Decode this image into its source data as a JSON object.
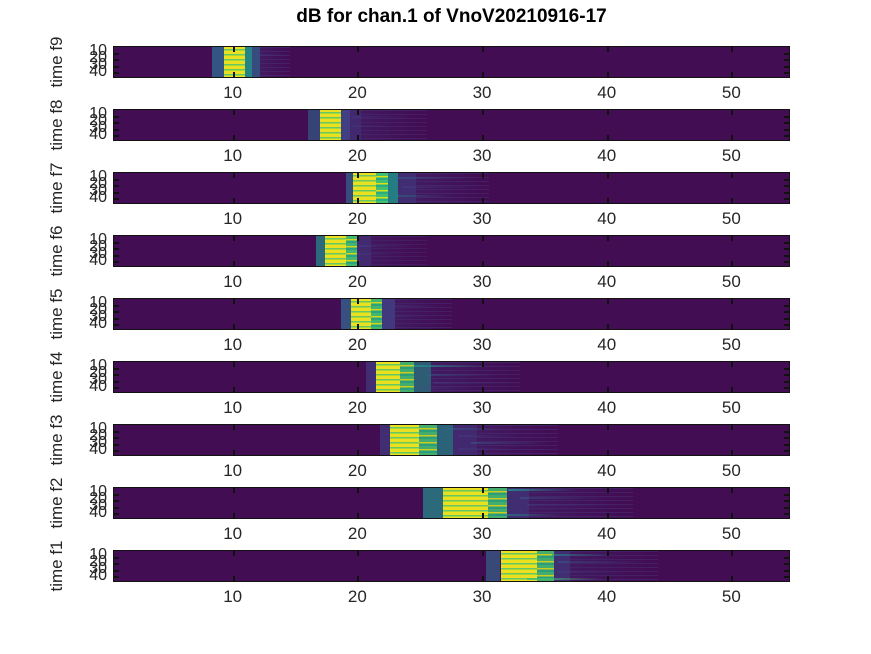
{
  "title": "dB for chan.1 of VnoV20210916-17",
  "colors": {
    "figure_background": "#ffffff",
    "heatmap_low": "#430d54",
    "heatmap_peak_yellow": "#ecdf1f",
    "heatmap_green": "#44bf70",
    "heatmap_teal": "#21918c",
    "heatmap_steel": "#31688e",
    "heatmap_blue": "#414487",
    "axis_text": "#262626",
    "axis_line": "#121212"
  },
  "chart_data": {
    "type": "heatmap",
    "title": "dB for chan.1 of VnoV20210916-17",
    "colormap": "viridis",
    "n_subplots": 9,
    "x_ticks": [
      10,
      20,
      30,
      40,
      50
    ],
    "xlim": [
      0.4,
      54.7
    ],
    "y_ticks": [
      10,
      20,
      30,
      40
    ],
    "ylim": [
      0,
      45
    ],
    "legend": "none",
    "grid": false,
    "subplots": [
      {
        "ylabel": "time f9",
        "x_tick_labels": [
          "10",
          "20",
          "30",
          "40",
          "50"
        ],
        "y_tick_labels": [
          "10",
          "20",
          "30",
          "40"
        ],
        "blob_center_x": 10,
        "blob_extent_x": [
          8.3,
          14.5
        ],
        "bands": [
          {
            "type": "steel",
            "x0": 8.3,
            "x1": 9.2,
            "opacity": 0.8
          },
          {
            "type": "stripe_yg",
            "x0": 9.2,
            "x1": 10.9,
            "opacity": 1
          },
          {
            "type": "teal",
            "x0": 10.9,
            "x1": 11.5,
            "opacity": 0.9
          },
          {
            "type": "steel",
            "x0": 11.5,
            "x1": 12.1,
            "opacity": 0.7
          },
          {
            "type": "tail",
            "x0": 12.1,
            "x1": 14.5,
            "opacity": 0.5
          }
        ],
        "streaks": [
          {
            "yfrac": 0.25,
            "x0": 11.5,
            "x1": 14.8,
            "color": "blue",
            "opacity": 0.35
          }
        ]
      },
      {
        "ylabel": "time f8",
        "x_tick_labels": [
          "10",
          "20",
          "30",
          "40",
          "50"
        ],
        "y_tick_labels": [
          "10",
          "20",
          "30",
          "40"
        ],
        "blob_center_x": 17.8,
        "blob_extent_x": [
          16.0,
          25.5
        ],
        "bands": [
          {
            "type": "steel",
            "x0": 16.0,
            "x1": 16.9,
            "opacity": 0.6
          },
          {
            "type": "stripe_yg",
            "x0": 16.9,
            "x1": 18.6,
            "opacity": 1
          },
          {
            "type": "blue",
            "x0": 18.6,
            "x1": 19.3,
            "opacity": 0.9
          },
          {
            "type": "blue",
            "x0": 19.3,
            "x1": 20.2,
            "opacity": 0.5
          },
          {
            "type": "tail",
            "x0": 20.2,
            "x1": 25.5,
            "opacity": 0.45
          }
        ],
        "streaks": [
          {
            "yfrac": 0.2,
            "x0": 19.5,
            "x1": 24.5,
            "color": "blue",
            "opacity": 0.3
          },
          {
            "yfrac": 0.5,
            "x0": 19.5,
            "x1": 22.5,
            "color": "blue",
            "opacity": 0.3
          }
        ]
      },
      {
        "ylabel": "time f7",
        "x_tick_labels": [
          "10",
          "20",
          "30",
          "40",
          "50"
        ],
        "y_tick_labels": [
          "10",
          "20",
          "30",
          "40"
        ],
        "blob_center_x": 20.5,
        "blob_extent_x": [
          19.0,
          30.5
        ],
        "bands": [
          {
            "type": "steel",
            "x0": 19.0,
            "x1": 19.6,
            "opacity": 0.7
          },
          {
            "type": "stripe_yg",
            "x0": 19.6,
            "x1": 21.4,
            "opacity": 1
          },
          {
            "type": "stripe_gy",
            "x0": 21.4,
            "x1": 22.4,
            "opacity": 1
          },
          {
            "type": "teal",
            "x0": 22.4,
            "x1": 23.2,
            "opacity": 0.85
          },
          {
            "type": "blue",
            "x0": 23.2,
            "x1": 24.6,
            "opacity": 0.6
          },
          {
            "type": "tail",
            "x0": 24.6,
            "x1": 30.5,
            "opacity": 0.5
          }
        ],
        "streaks": [
          {
            "yfrac": 0.15,
            "x0": 23.0,
            "x1": 29.0,
            "color": "steel",
            "opacity": 0.45
          },
          {
            "yfrac": 0.45,
            "x0": 23.5,
            "x1": 31.0,
            "color": "blue",
            "opacity": 0.35
          },
          {
            "yfrac": 0.75,
            "x0": 23.0,
            "x1": 27.5,
            "color": "teal",
            "opacity": 0.3
          }
        ]
      },
      {
        "ylabel": "time f6",
        "x_tick_labels": [
          "10",
          "20",
          "30",
          "40",
          "50"
        ],
        "y_tick_labels": [
          "10",
          "20",
          "30",
          "40"
        ],
        "blob_center_x": 18.2,
        "blob_extent_x": [
          16.6,
          25.5
        ],
        "bands": [
          {
            "type": "teal",
            "x0": 16.6,
            "x1": 17.3,
            "opacity": 0.7
          },
          {
            "type": "stripe_yg",
            "x0": 17.3,
            "x1": 19.0,
            "opacity": 1
          },
          {
            "type": "stripe_gy",
            "x0": 19.0,
            "x1": 19.9,
            "opacity": 0.95
          },
          {
            "type": "blue",
            "x0": 19.9,
            "x1": 21.0,
            "opacity": 0.55
          },
          {
            "type": "tail",
            "x0": 21.0,
            "x1": 25.5,
            "opacity": 0.4
          }
        ],
        "streaks": [
          {
            "yfrac": 0.3,
            "x0": 20.0,
            "x1": 24.5,
            "color": "blue",
            "opacity": 0.35
          },
          {
            "yfrac": 0.6,
            "x0": 20.0,
            "x1": 23.0,
            "color": "blue",
            "opacity": 0.3
          }
        ]
      },
      {
        "ylabel": "time f5",
        "x_tick_labels": [
          "10",
          "20",
          "30",
          "40",
          "50"
        ],
        "y_tick_labels": [
          "10",
          "20",
          "30",
          "40"
        ],
        "blob_center_x": 20.3,
        "blob_extent_x": [
          18.6,
          27.5
        ],
        "bands": [
          {
            "type": "steel",
            "x0": 18.6,
            "x1": 19.4,
            "opacity": 0.75
          },
          {
            "type": "stripe_yg",
            "x0": 19.4,
            "x1": 21.0,
            "opacity": 1
          },
          {
            "type": "stripe_gy",
            "x0": 21.0,
            "x1": 21.9,
            "opacity": 0.95
          },
          {
            "type": "blue",
            "x0": 21.9,
            "x1": 22.9,
            "opacity": 0.8
          },
          {
            "type": "tail",
            "x0": 22.9,
            "x1": 27.5,
            "opacity": 0.45
          }
        ],
        "streaks": [
          {
            "yfrac": 0.2,
            "x0": 22.5,
            "x1": 27.0,
            "color": "blue",
            "opacity": 0.35
          },
          {
            "yfrac": 0.55,
            "x0": 22.5,
            "x1": 25.5,
            "color": "blue",
            "opacity": 0.3
          }
        ]
      },
      {
        "ylabel": "time f4",
        "x_tick_labels": [
          "10",
          "20",
          "30",
          "40",
          "50"
        ],
        "y_tick_labels": [
          "10",
          "20",
          "30",
          "40"
        ],
        "blob_center_x": 22.5,
        "blob_extent_x": [
          20.6,
          33.0
        ],
        "bands": [
          {
            "type": "blue",
            "x0": 20.6,
            "x1": 21.4,
            "opacity": 0.6
          },
          {
            "type": "stripe_yg",
            "x0": 21.4,
            "x1": 23.3,
            "opacity": 1
          },
          {
            "type": "stripe_gy",
            "x0": 23.3,
            "x1": 24.5,
            "opacity": 0.9
          },
          {
            "type": "teal",
            "x0": 24.5,
            "x1": 25.8,
            "opacity": 0.6
          },
          {
            "type": "tail",
            "x0": 25.8,
            "x1": 33.0,
            "opacity": 0.5
          }
        ],
        "streaks": [
          {
            "yfrac": 0.12,
            "x0": 24.5,
            "x1": 30.5,
            "color": "teal",
            "opacity": 0.75
          },
          {
            "yfrac": 0.4,
            "x0": 25.5,
            "x1": 31.0,
            "color": "steel",
            "opacity": 0.4
          },
          {
            "yfrac": 0.68,
            "x0": 26.0,
            "x1": 33.5,
            "color": "blue",
            "opacity": 0.35
          },
          {
            "yfrac": 0.85,
            "x0": 25.0,
            "x1": 29.0,
            "color": "blue",
            "opacity": 0.3
          }
        ]
      },
      {
        "ylabel": "time f3",
        "x_tick_labels": [
          "10",
          "20",
          "30",
          "40",
          "50"
        ],
        "y_tick_labels": [
          "10",
          "20",
          "30",
          "40"
        ],
        "blob_center_x": 24.0,
        "blob_extent_x": [
          21.7,
          36.0
        ],
        "bands": [
          {
            "type": "blue",
            "x0": 21.7,
            "x1": 22.5,
            "opacity": 0.6
          },
          {
            "type": "stripe_yg",
            "x0": 22.5,
            "x1": 24.9,
            "opacity": 1
          },
          {
            "type": "stripe_gy",
            "x0": 24.9,
            "x1": 26.3,
            "opacity": 0.9
          },
          {
            "type": "teal",
            "x0": 26.3,
            "x1": 27.6,
            "opacity": 0.65
          },
          {
            "type": "blue",
            "x0": 27.6,
            "x1": 29.5,
            "opacity": 0.5
          },
          {
            "type": "tail",
            "x0": 29.5,
            "x1": 36.0,
            "opacity": 0.5
          }
        ],
        "streaks": [
          {
            "yfrac": 0.1,
            "x0": 27.0,
            "x1": 31.5,
            "color": "steel",
            "opacity": 0.5
          },
          {
            "yfrac": 0.35,
            "x0": 28.0,
            "x1": 33.0,
            "color": "blue",
            "opacity": 0.4
          },
          {
            "yfrac": 0.6,
            "x0": 29.0,
            "x1": 35.5,
            "color": "steel",
            "opacity": 0.45
          },
          {
            "yfrac": 0.8,
            "x0": 28.0,
            "x1": 32.0,
            "color": "blue",
            "opacity": 0.35
          }
        ]
      },
      {
        "ylabel": "time f2",
        "x_tick_labels": [
          "10",
          "20",
          "30",
          "40",
          "50"
        ],
        "y_tick_labels": [
          "10",
          "20",
          "30",
          "40"
        ],
        "blob_center_x": 29.0,
        "blob_extent_x": [
          25.2,
          42.0
        ],
        "bands": [
          {
            "type": "teal",
            "x0": 25.2,
            "x1": 26.8,
            "opacity": 0.7
          },
          {
            "type": "stripe_yg",
            "x0": 26.8,
            "x1": 30.4,
            "opacity": 1
          },
          {
            "type": "stripe_gy",
            "x0": 30.4,
            "x1": 31.9,
            "opacity": 0.9
          },
          {
            "type": "blue",
            "x0": 31.9,
            "x1": 33.7,
            "opacity": 0.6
          },
          {
            "type": "tail",
            "x0": 33.7,
            "x1": 42.0,
            "opacity": 0.5
          }
        ],
        "streaks": [
          {
            "yfrac": 0.05,
            "x0": 32.0,
            "x1": 37.5,
            "color": "teal",
            "opacity": 0.8
          },
          {
            "yfrac": 0.3,
            "x0": 33.0,
            "x1": 40.0,
            "color": "steel",
            "opacity": 0.4
          },
          {
            "yfrac": 0.55,
            "x0": 33.5,
            "x1": 41.5,
            "color": "blue",
            "opacity": 0.35
          },
          {
            "yfrac": 0.88,
            "x0": 31.0,
            "x1": 36.5,
            "color": "teal",
            "opacity": 0.6
          }
        ]
      },
      {
        "ylabel": "time f1",
        "x_tick_labels": [
          "10",
          "20",
          "30",
          "40",
          "50"
        ],
        "y_tick_labels": [
          "10",
          "20",
          "30",
          "40"
        ],
        "blob_center_x": 33.0,
        "blob_extent_x": [
          30.2,
          44.0
        ],
        "bands": [
          {
            "type": "steel",
            "x0": 30.2,
            "x1": 31.4,
            "opacity": 0.65
          },
          {
            "type": "stripe_yg",
            "x0": 31.4,
            "x1": 34.3,
            "opacity": 1
          },
          {
            "type": "stripe_gy",
            "x0": 34.3,
            "x1": 35.7,
            "opacity": 0.9
          },
          {
            "type": "blue",
            "x0": 35.7,
            "x1": 37.0,
            "opacity": 0.6
          },
          {
            "type": "tail",
            "x0": 37.0,
            "x1": 44.0,
            "opacity": 0.45
          }
        ],
        "streaks": [
          {
            "yfrac": 0.1,
            "x0": 35.5,
            "x1": 40.5,
            "color": "teal",
            "opacity": 0.6
          },
          {
            "yfrac": 0.35,
            "x0": 36.0,
            "x1": 43.5,
            "color": "steel",
            "opacity": 0.4
          },
          {
            "yfrac": 0.7,
            "x0": 36.0,
            "x1": 41.0,
            "color": "blue",
            "opacity": 0.35
          },
          {
            "yfrac": 0.92,
            "x0": 33.5,
            "x1": 39.5,
            "color": "green",
            "opacity": 0.85
          }
        ]
      }
    ]
  }
}
